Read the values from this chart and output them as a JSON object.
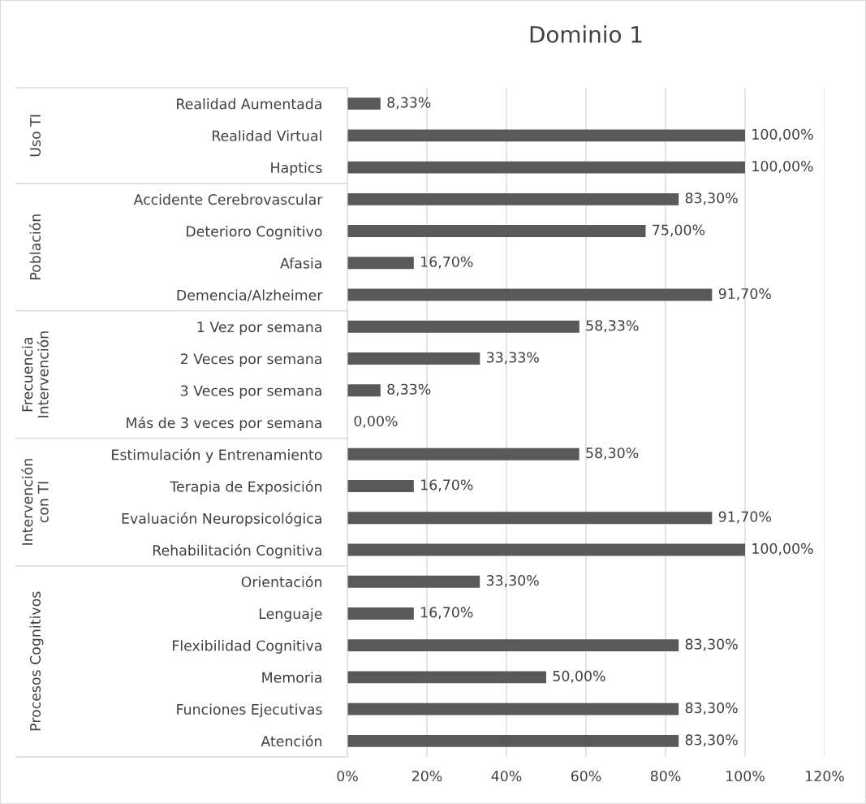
{
  "chart_data": {
    "type": "bar",
    "orientation": "horizontal",
    "title": "Dominio 1",
    "categories": [
      "Realidad Aumentada",
      "Realidad Virtual",
      "Haptics",
      "Accidente Cerebrovascular",
      "Deterioro Cognitivo",
      "Afasia",
      "Demencia/Alzheimer",
      "1 Vez por semana",
      "2 Veces por semana",
      "3 Veces por semana",
      "Más de 3 veces por semana",
      "Estimulación y Entrenamiento",
      "Terapia de Exposición",
      "Evaluación Neuropsicológica",
      "Rehabilitación Cognitiva",
      "Orientación",
      "Lenguaje",
      "Flexibilidad Cognitiva",
      "Memoria",
      "Funciones Ejecutivas",
      "Atención"
    ],
    "values": [
      8.33,
      100,
      100,
      83.3,
      75,
      16.7,
      91.7,
      58.33,
      33.33,
      8.33,
      0,
      58.3,
      16.7,
      91.7,
      100,
      33.3,
      16.7,
      83.3,
      50,
      83.3,
      83.3
    ],
    "value_labels": [
      "8,33%",
      "100,00%",
      "100,00%",
      "83,30%",
      "75,00%",
      "16,70%",
      "91,70%",
      "58,33%",
      "33,33%",
      "8,33%",
      "0,00%",
      "58,30%",
      "16,70%",
      "91,70%",
      "100,00%",
      "33,30%",
      "16,70%",
      "83,30%",
      "50,00%",
      "83,30%",
      "83,30%"
    ],
    "color": "#595959",
    "xlim": [
      0,
      120
    ],
    "xticks": [
      {
        "value": 0,
        "label": "0%"
      },
      {
        "value": 20,
        "label": "20%"
      },
      {
        "value": 40,
        "label": "40%"
      },
      {
        "value": 60,
        "label": "60%"
      },
      {
        "value": 80,
        "label": "80%"
      },
      {
        "value": 100,
        "label": "100%"
      },
      {
        "value": 120,
        "label": "120%"
      }
    ],
    "grid": "x",
    "annotations": [
      "Uso TI",
      "Población",
      "Frecuencia\nIntervención",
      "Intervención\ncon TI",
      "Procesos Cognitivos"
    ]
  }
}
